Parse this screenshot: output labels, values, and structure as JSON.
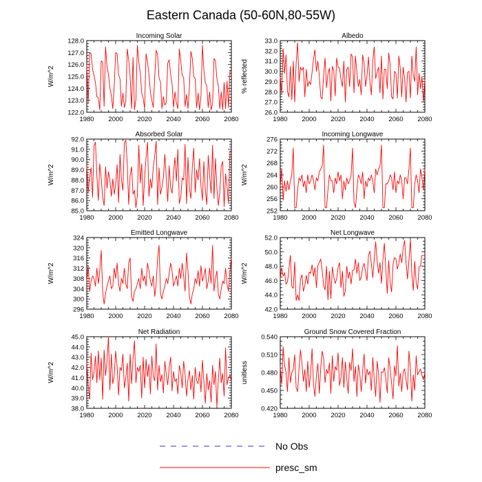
{
  "title": "Eastern Canada (50-60N,80-55W)",
  "legend": [
    {
      "label": "No Obs",
      "color": "#3333cc",
      "style": "dashed"
    },
    {
      "label": "presc_sm",
      "color": "#ff0000",
      "style": "solid"
    }
  ],
  "chart_data": [
    {
      "type": "line",
      "title": "Incoming Solar",
      "ylabel": "W/m^2",
      "xlim": [
        1980,
        2080
      ],
      "x_ticks": [
        "1980",
        "2000",
        "2020",
        "2040",
        "2060",
        "2080"
      ],
      "ylim": [
        122.0,
        128.0
      ],
      "y_ticks": [
        "122.0",
        "123.0",
        "124.0",
        "125.0",
        "126.0",
        "127.0",
        "128.0"
      ],
      "series_color": "#ff0000",
      "values": [
        126.0,
        122.8,
        127.0,
        126.9,
        125.6,
        125.1,
        124.5,
        123.3,
        123.2,
        122.2,
        126.3,
        126.2,
        122.5,
        127.5,
        125.8,
        125.2,
        124.0,
        123.4,
        122.3,
        124.2,
        127.0,
        126.9,
        125.1,
        124.8,
        122.5,
        123.6,
        122.4,
        122.9,
        127.3,
        126.4,
        125.0,
        122.3,
        126.6,
        122.2,
        123.1,
        127.6,
        126.2,
        125.3,
        123.6,
        123.2,
        122.3,
        126.9,
        126.2,
        125.2,
        123.7,
        123.0,
        122.4,
        125.0,
        127.2,
        126.8,
        124.9,
        124.5,
        122.3,
        123.3,
        122.6,
        122.8,
        126.1,
        126.4,
        125.2,
        124.4,
        122.4,
        123.7,
        122.8,
        122.3,
        127.3,
        126.3,
        125.1,
        124.9,
        122.5,
        123.5,
        122.3,
        124.1,
        127.1,
        126.5,
        125.0,
        124.8,
        122.4,
        123.6,
        122.2,
        123.4,
        127.6,
        125.5,
        124.5,
        124.2,
        122.4,
        123.7,
        122.2,
        122.7,
        126.5,
        126.3,
        124.8,
        124.2,
        122.3,
        123.7,
        122.2,
        124.5,
        122.3,
        124.6,
        122.4,
        125.4,
        125.6
      ]
    },
    {
      "type": "line",
      "title": "Albedo",
      "ylabel": "% reflected",
      "xlim": [
        1980,
        2080
      ],
      "x_ticks": [
        "1980",
        "2000",
        "2020",
        "2040",
        "2060",
        "2080"
      ],
      "ylim": [
        26.0,
        33.0
      ],
      "y_ticks": [
        "26.0",
        "27.0",
        "28.0",
        "29.0",
        "30.0",
        "31.0",
        "32.0",
        "33.0"
      ],
      "series_color": "#ff0000",
      "values": [
        29.5,
        27.8,
        32.2,
        29.8,
        31.6,
        28.0,
        27.5,
        30.5,
        27.2,
        31.0,
        27.0,
        30.8,
        32.8,
        29.0,
        30.4,
        30.1,
        30.4,
        27.5,
        30.2,
        28.5,
        29.0,
        28.7,
        29.9,
        31.2,
        32.1,
        30.0,
        31.0,
        29.6,
        27.5,
        27.3,
        29.6,
        31.3,
        28.4,
        29.8,
        30.3,
        27.1,
        30.5,
        30.1,
        27.6,
        31.3,
        30.4,
        30.3,
        29.2,
        28.5,
        31.0,
        27.0,
        30.2,
        30.4,
        28.5,
        31.7,
        31.4,
        27.9,
        31.5,
        29.9,
        28.5,
        29.2,
        27.7,
        31.6,
        30.8,
        28.5,
        29.6,
        31.4,
        29.0,
        27.7,
        31.0,
        32.4,
        29.3,
        29.9,
        30.4,
        27.9,
        31.5,
        27.3,
        30.2,
        30.2,
        28.3,
        31.8,
        30.6,
        27.5,
        27.3,
        30.0,
        29.8,
        27.4,
        31.5,
        30.3,
        27.5,
        30.4,
        29.3,
        27.0,
        29.9,
        30.0,
        27.4,
        31.5,
        29.6,
        29.0,
        32.4,
        27.7,
        29.8,
        28.3,
        29.5,
        27.0,
        29.2
      ]
    },
    {
      "type": "line",
      "title": "Absorbed Solar",
      "ylabel": "W/m^2",
      "xlim": [
        1980,
        2080
      ],
      "x_ticks": [
        "1980",
        "2000",
        "2020",
        "2040",
        "2060",
        "2080"
      ],
      "ylim": [
        85.0,
        92.0
      ],
      "y_ticks": [
        "85.0",
        "86.0",
        "87.0",
        "88.0",
        "89.0",
        "90.0",
        "91.0",
        "92.0"
      ],
      "series_color": "#ff0000",
      "values": [
        89.5,
        86.8,
        88.3,
        89.2,
        86.3,
        91.3,
        91.7,
        88.4,
        86.0,
        89.6,
        88.2,
        86.3,
        85.5,
        89.3,
        87.2,
        88.8,
        88.0,
        86.4,
        88.1,
        86.6,
        87.6,
        89.5,
        85.8,
        90.5,
        88.0,
        87.0,
        91.6,
        91.9,
        89.6,
        85.6,
        88.4,
        89.3,
        86.6,
        87.0,
        85.3,
        86.5,
        91.4,
        87.7,
        89.6,
        85.5,
        88.2,
        90.2,
        91.7,
        86.4,
        88.1,
        87.2,
        89.3,
        90.3,
        91.8,
        85.6,
        89.2,
        86.6,
        87.3,
        88.3,
        90.5,
        88.2,
        85.9,
        89.4,
        87.3,
        86.7,
        88.7,
        90.2,
        87.9,
        91.0,
        85.7,
        86.3,
        88.2,
        88.0,
        91.5,
        85.7,
        90.2,
        87.2,
        86.2,
        89.3,
        91.1,
        86.8,
        89.0,
        88.0,
        90.1,
        87.4,
        86.0,
        89.8,
        87.0,
        85.6,
        90.4,
        88.4,
        86.7,
        91.4,
        86.2,
        90.1,
        87.2,
        85.5,
        86.9,
        89.4,
        89.8,
        85.4,
        88.6,
        87.4,
        85.7,
        90.8,
        90.8
      ]
    },
    {
      "type": "line",
      "title": "Incoming Longwave",
      "ylabel": "W/m^2",
      "xlim": [
        1980,
        2080
      ],
      "x_ticks": [
        "1980",
        "2000",
        "2020",
        "2040",
        "2060",
        "2080"
      ],
      "ylim": [
        252,
        276
      ],
      "y_ticks": [
        "252",
        "256",
        "260",
        "264",
        "268",
        "272",
        "276"
      ],
      "series_color": "#ff0000",
      "values": [
        260.0,
        266.0,
        255.5,
        262.0,
        258.5,
        262.0,
        259.0,
        262.0,
        264.0,
        273.0,
        253.0,
        253.0,
        259.0,
        263.0,
        262.0,
        264.0,
        260.0,
        262.0,
        258.0,
        264.0,
        261.0,
        262.0,
        264.0,
        262.0,
        259.0,
        263.0,
        262.0,
        265.0,
        266.0,
        267.0,
        274.0,
        253.0,
        253.0,
        259.0,
        264.0,
        262.0,
        262.0,
        258.0,
        263.0,
        261.0,
        265.0,
        262.0,
        264.0,
        256.0,
        262.0,
        259.0,
        263.0,
        261.0,
        262.0,
        264.0,
        273.0,
        255.0,
        253.0,
        259.0,
        264.0,
        263.0,
        261.0,
        265.0,
        256.0,
        262.0,
        260.0,
        263.0,
        262.0,
        264.0,
        262.0,
        258.0,
        266.0,
        264.0,
        266.0,
        267.0,
        274.0,
        253.0,
        253.0,
        261.0,
        261.0,
        262.0,
        264.0,
        263.0,
        259.0,
        265.0,
        258.0,
        262.0,
        261.0,
        264.0,
        262.0,
        256.0,
        263.0,
        263.0,
        261.0,
        266.0,
        273.0,
        253.0,
        253.0,
        261.0,
        264.0,
        262.0,
        258.0,
        266.0,
        263.0,
        259.0,
        266.0
      ]
    },
    {
      "type": "line",
      "title": "Emitted Longwave",
      "ylabel": "W/m^2",
      "xlim": [
        1980,
        2080
      ],
      "x_ticks": [
        "1980",
        "2000",
        "2020",
        "2040",
        "2060",
        "2080"
      ],
      "ylim": [
        296,
        324
      ],
      "y_ticks": [
        "296",
        "300",
        "304",
        "308",
        "312",
        "316",
        "320",
        "324"
      ],
      "series_color": "#ff0000",
      "values": [
        307.0,
        313.0,
        303.0,
        307.0,
        309.0,
        308.0,
        305.0,
        312.0,
        306.0,
        311.0,
        319.0,
        303.0,
        298.0,
        302.0,
        305.0,
        307.0,
        309.0,
        304.0,
        305.0,
        312.0,
        308.0,
        314.0,
        306.0,
        303.0,
        308.0,
        306.0,
        312.0,
        306.0,
        304.0,
        314.0,
        316.0,
        301.0,
        299.0,
        303.0,
        304.0,
        306.0,
        308.0,
        304.0,
        312.0,
        307.0,
        309.0,
        305.0,
        314.0,
        311.0,
        307.0,
        305.0,
        309.0,
        301.0,
        306.0,
        316.0,
        321.0,
        302.0,
        300.0,
        303.0,
        305.0,
        308.0,
        306.0,
        310.0,
        314.0,
        311.0,
        305.0,
        307.0,
        309.0,
        305.0,
        312.0,
        308.0,
        314.0,
        309.0,
        303.0,
        318.0,
        311.0,
        301.0,
        298.0,
        302.0,
        304.0,
        308.0,
        306.0,
        311.0,
        305.0,
        313.0,
        307.0,
        309.0,
        312.0,
        304.0,
        307.0,
        312.0,
        306.0,
        321.0,
        303.0,
        308.0,
        311.0,
        302.0,
        300.0,
        304.0,
        307.0,
        306.0,
        312.0,
        306.0,
        303.0,
        311.0,
        316.0
      ]
    },
    {
      "type": "line",
      "title": "Net Longwave",
      "ylabel": "W/m^2",
      "xlim": [
        1980,
        2080
      ],
      "x_ticks": [
        "1980",
        "2000",
        "2020",
        "2040",
        "2060",
        "2080"
      ],
      "ylim": [
        42.0,
        52.0
      ],
      "y_ticks": [
        "42.0",
        "44.0",
        "46.0",
        "48.0",
        "50.0",
        "52.0"
      ],
      "series_color": "#ff0000",
      "values": [
        46.2,
        47.8,
        46.6,
        47.1,
        45.5,
        45.8,
        47.6,
        49.5,
        45.2,
        44.9,
        48.6,
        43.2,
        44.0,
        43.2,
        46.2,
        46.8,
        44.5,
        45.3,
        46.7,
        45.5,
        47.2,
        47.0,
        48.2,
        46.6,
        47.8,
        45.0,
        48.1,
        48.5,
        49.0,
        47.4,
        45.3,
        44.7,
        48.0,
        43.3,
        47.3,
        43.5,
        47.9,
        46.5,
        45.6,
        46.2,
        47.8,
        48.5,
        45.0,
        47.3,
        43.8,
        44.5,
        48.0,
        46.3,
        47.2,
        45.5,
        47.4,
        47.5,
        49.0,
        47.0,
        48.5,
        46.0,
        46.5,
        47.8,
        48.4,
        47.2,
        46.0,
        49.5,
        50.1,
        48.3,
        46.4,
        49.0,
        51.4,
        48.8,
        47.0,
        48.5,
        45.6,
        49.0,
        51.2,
        47.6,
        44.2,
        48.8,
        45.8,
        44.4,
        48.2,
        49.2,
        49.0,
        47.6,
        48.4,
        49.7,
        48.5,
        50.5,
        51.6,
        48.5,
        46.2,
        48.8,
        51.7,
        46.9,
        44.6,
        48.7,
        45.7,
        44.8,
        47.9,
        48.0,
        49.5,
        49.5,
        49.5
      ]
    },
    {
      "type": "line",
      "title": "Net Radiation",
      "ylabel": "W/m^2",
      "xlim": [
        1980,
        2080
      ],
      "x_ticks": [
        "1980",
        "2000",
        "2020",
        "2040",
        "2060",
        "2080"
      ],
      "ylim": [
        38.0,
        45.0
      ],
      "y_ticks": [
        "38.0",
        "39.0",
        "40.0",
        "41.0",
        "42.0",
        "43.0",
        "44.0",
        "45.0"
      ],
      "series_color": "#ff0000",
      "values": [
        42.5,
        40.2,
        38.9,
        43.4,
        40.8,
        41.5,
        43.1,
        40.5,
        43.6,
        40.8,
        42.9,
        38.9,
        43.7,
        41.2,
        42.6,
        45.0,
        39.8,
        43.3,
        40.4,
        41.2,
        43.6,
        42.1,
        39.3,
        42.0,
        41.7,
        43.3,
        40.0,
        41.0,
        42.4,
        38.7,
        43.3,
        40.4,
        42.8,
        44.6,
        40.5,
        42.0,
        41.6,
        42.2,
        39.0,
        43.0,
        40.0,
        42.8,
        41.1,
        42.3,
        39.4,
        43.1,
        41.1,
        40.7,
        44.3,
        39.8,
        42.2,
        40.6,
        41.3,
        39.5,
        42.6,
        41.3,
        40.3,
        42.0,
        43.0,
        39.7,
        41.6,
        40.6,
        40.9,
        39.4,
        42.2,
        41.5,
        40.0,
        42.6,
        41.3,
        39.2,
        40.8,
        41.7,
        39.8,
        41.2,
        38.9,
        42.0,
        40.7,
        40.4,
        41.6,
        39.6,
        42.7,
        40.6,
        38.5,
        41.4,
        39.8,
        40.7,
        38.6,
        42.2,
        40.3,
        41.6,
        38.2,
        40.8,
        42.9,
        40.5,
        41.4,
        39.2,
        43.9,
        40.3,
        41.0,
        41.2,
        40.7
      ]
    },
    {
      "type": "line",
      "title": "Ground Snow Covered Fraction",
      "ylabel": "unitless",
      "xlim": [
        1980,
        2080
      ],
      "x_ticks": [
        "1980",
        "2000",
        "2020",
        "2040",
        "2060",
        "2080"
      ],
      "ylim": [
        0.42,
        0.54
      ],
      "y_ticks": [
        "0.420",
        "0.450",
        "0.480",
        "0.510",
        "0.540"
      ],
      "series_color": "#ff0000",
      "values": [
        0.49,
        0.46,
        0.523,
        0.492,
        0.48,
        0.448,
        0.505,
        0.463,
        0.48,
        0.485,
        0.51,
        0.455,
        0.448,
        0.487,
        0.518,
        0.496,
        0.465,
        0.485,
        0.448,
        0.499,
        0.455,
        0.478,
        0.52,
        0.46,
        0.44,
        0.475,
        0.495,
        0.445,
        0.488,
        0.516,
        0.503,
        0.463,
        0.485,
        0.478,
        0.496,
        0.445,
        0.508,
        0.465,
        0.49,
        0.484,
        0.513,
        0.458,
        0.472,
        0.505,
        0.455,
        0.498,
        0.47,
        0.445,
        0.497,
        0.483,
        0.52,
        0.465,
        0.49,
        0.44,
        0.493,
        0.479,
        0.448,
        0.484,
        0.511,
        0.462,
        0.486,
        0.476,
        0.482,
        0.45,
        0.505,
        0.468,
        0.44,
        0.499,
        0.478,
        0.43,
        0.481,
        0.48,
        0.488,
        0.47,
        0.446,
        0.505,
        0.487,
        0.462,
        0.436,
        0.491,
        0.474,
        0.525,
        0.457,
        0.479,
        0.448,
        0.481,
        0.486,
        0.468,
        0.451,
        0.516,
        0.488,
        0.432,
        0.476,
        0.45,
        0.508,
        0.476,
        0.481,
        0.486,
        0.475,
        0.468,
        0.48
      ]
    }
  ]
}
